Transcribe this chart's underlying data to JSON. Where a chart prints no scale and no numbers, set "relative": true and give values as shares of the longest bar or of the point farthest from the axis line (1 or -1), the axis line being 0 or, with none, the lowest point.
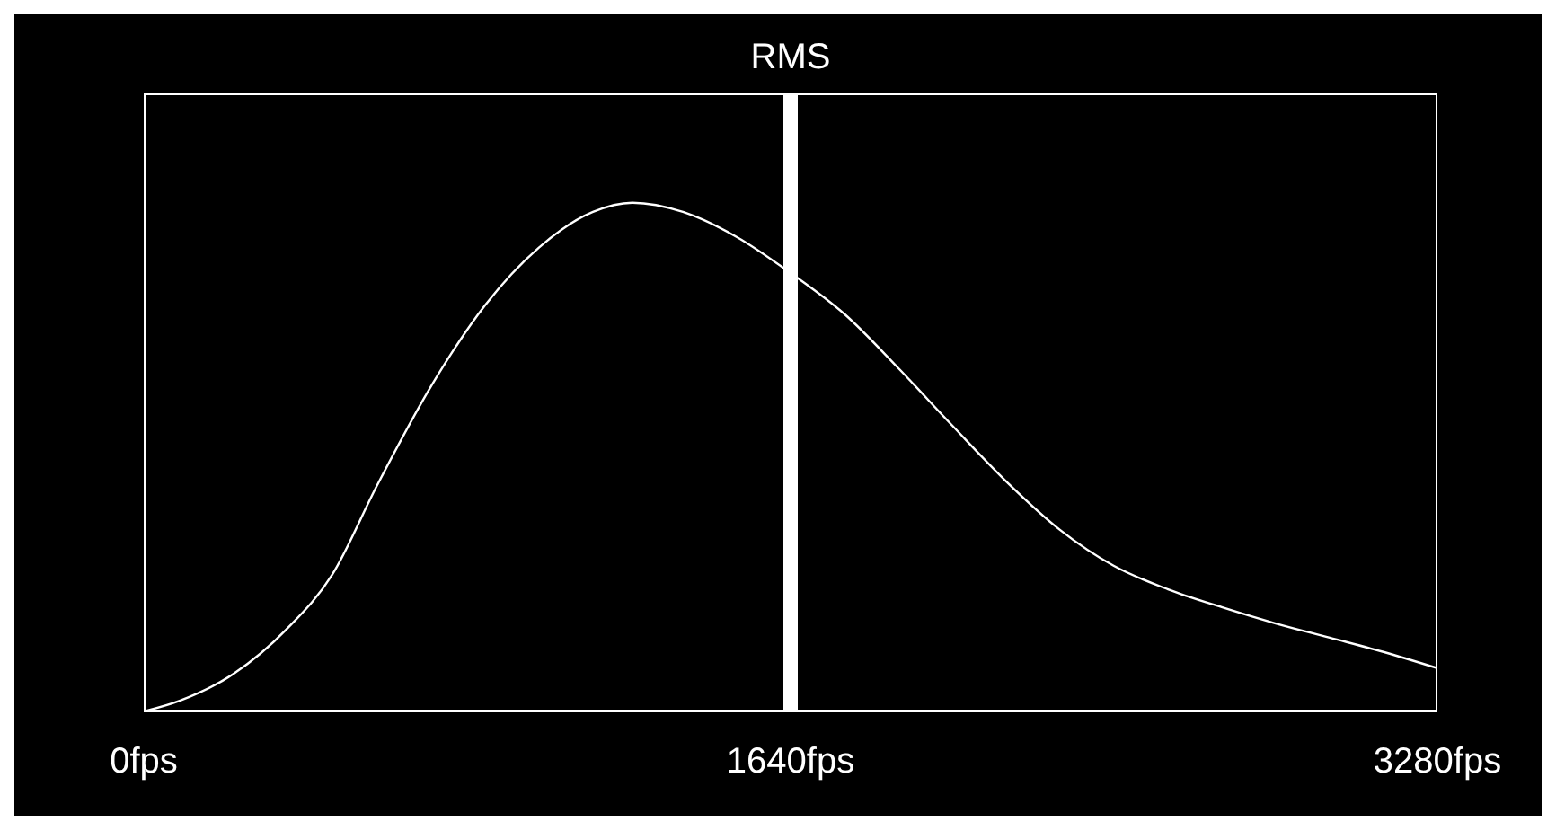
{
  "chart_data": {
    "type": "line",
    "relative": true,
    "x": [
      0,
      91,
      228,
      364,
      478,
      592,
      729,
      866,
      1002,
      1139,
      1239,
      1367,
      1503,
      1640,
      1777,
      1913,
      2050,
      2187,
      2323,
      2460,
      2597,
      2733,
      2870,
      3007,
      3143,
      3280
    ],
    "series": [
      {
        "color": "#ffffff",
        "values": [
          0,
          0.021,
          0.074,
          0.163,
          0.269,
          0.445,
          0.64,
          0.799,
          0.912,
          0.982,
          1,
          0.982,
          0.933,
          0.862,
          0.781,
          0.675,
          0.562,
          0.452,
          0.357,
          0.286,
          0.24,
          0.205,
          0.173,
          0.145,
          0.117,
          0.085
        ]
      }
    ],
    "xlim": [
      0,
      3280
    ],
    "xticks": [
      {
        "value": 0,
        "label": "0fps"
      },
      {
        "value": 1640,
        "label": "1640fps"
      },
      {
        "value": 3280,
        "label": "3280fps"
      }
    ],
    "ref_lines": [
      {
        "axis": "x",
        "value": 1640,
        "label": "RMS",
        "color": "#ffffff"
      }
    ],
    "grid": false,
    "legend": false,
    "marker": "none",
    "line_style": "solid"
  }
}
